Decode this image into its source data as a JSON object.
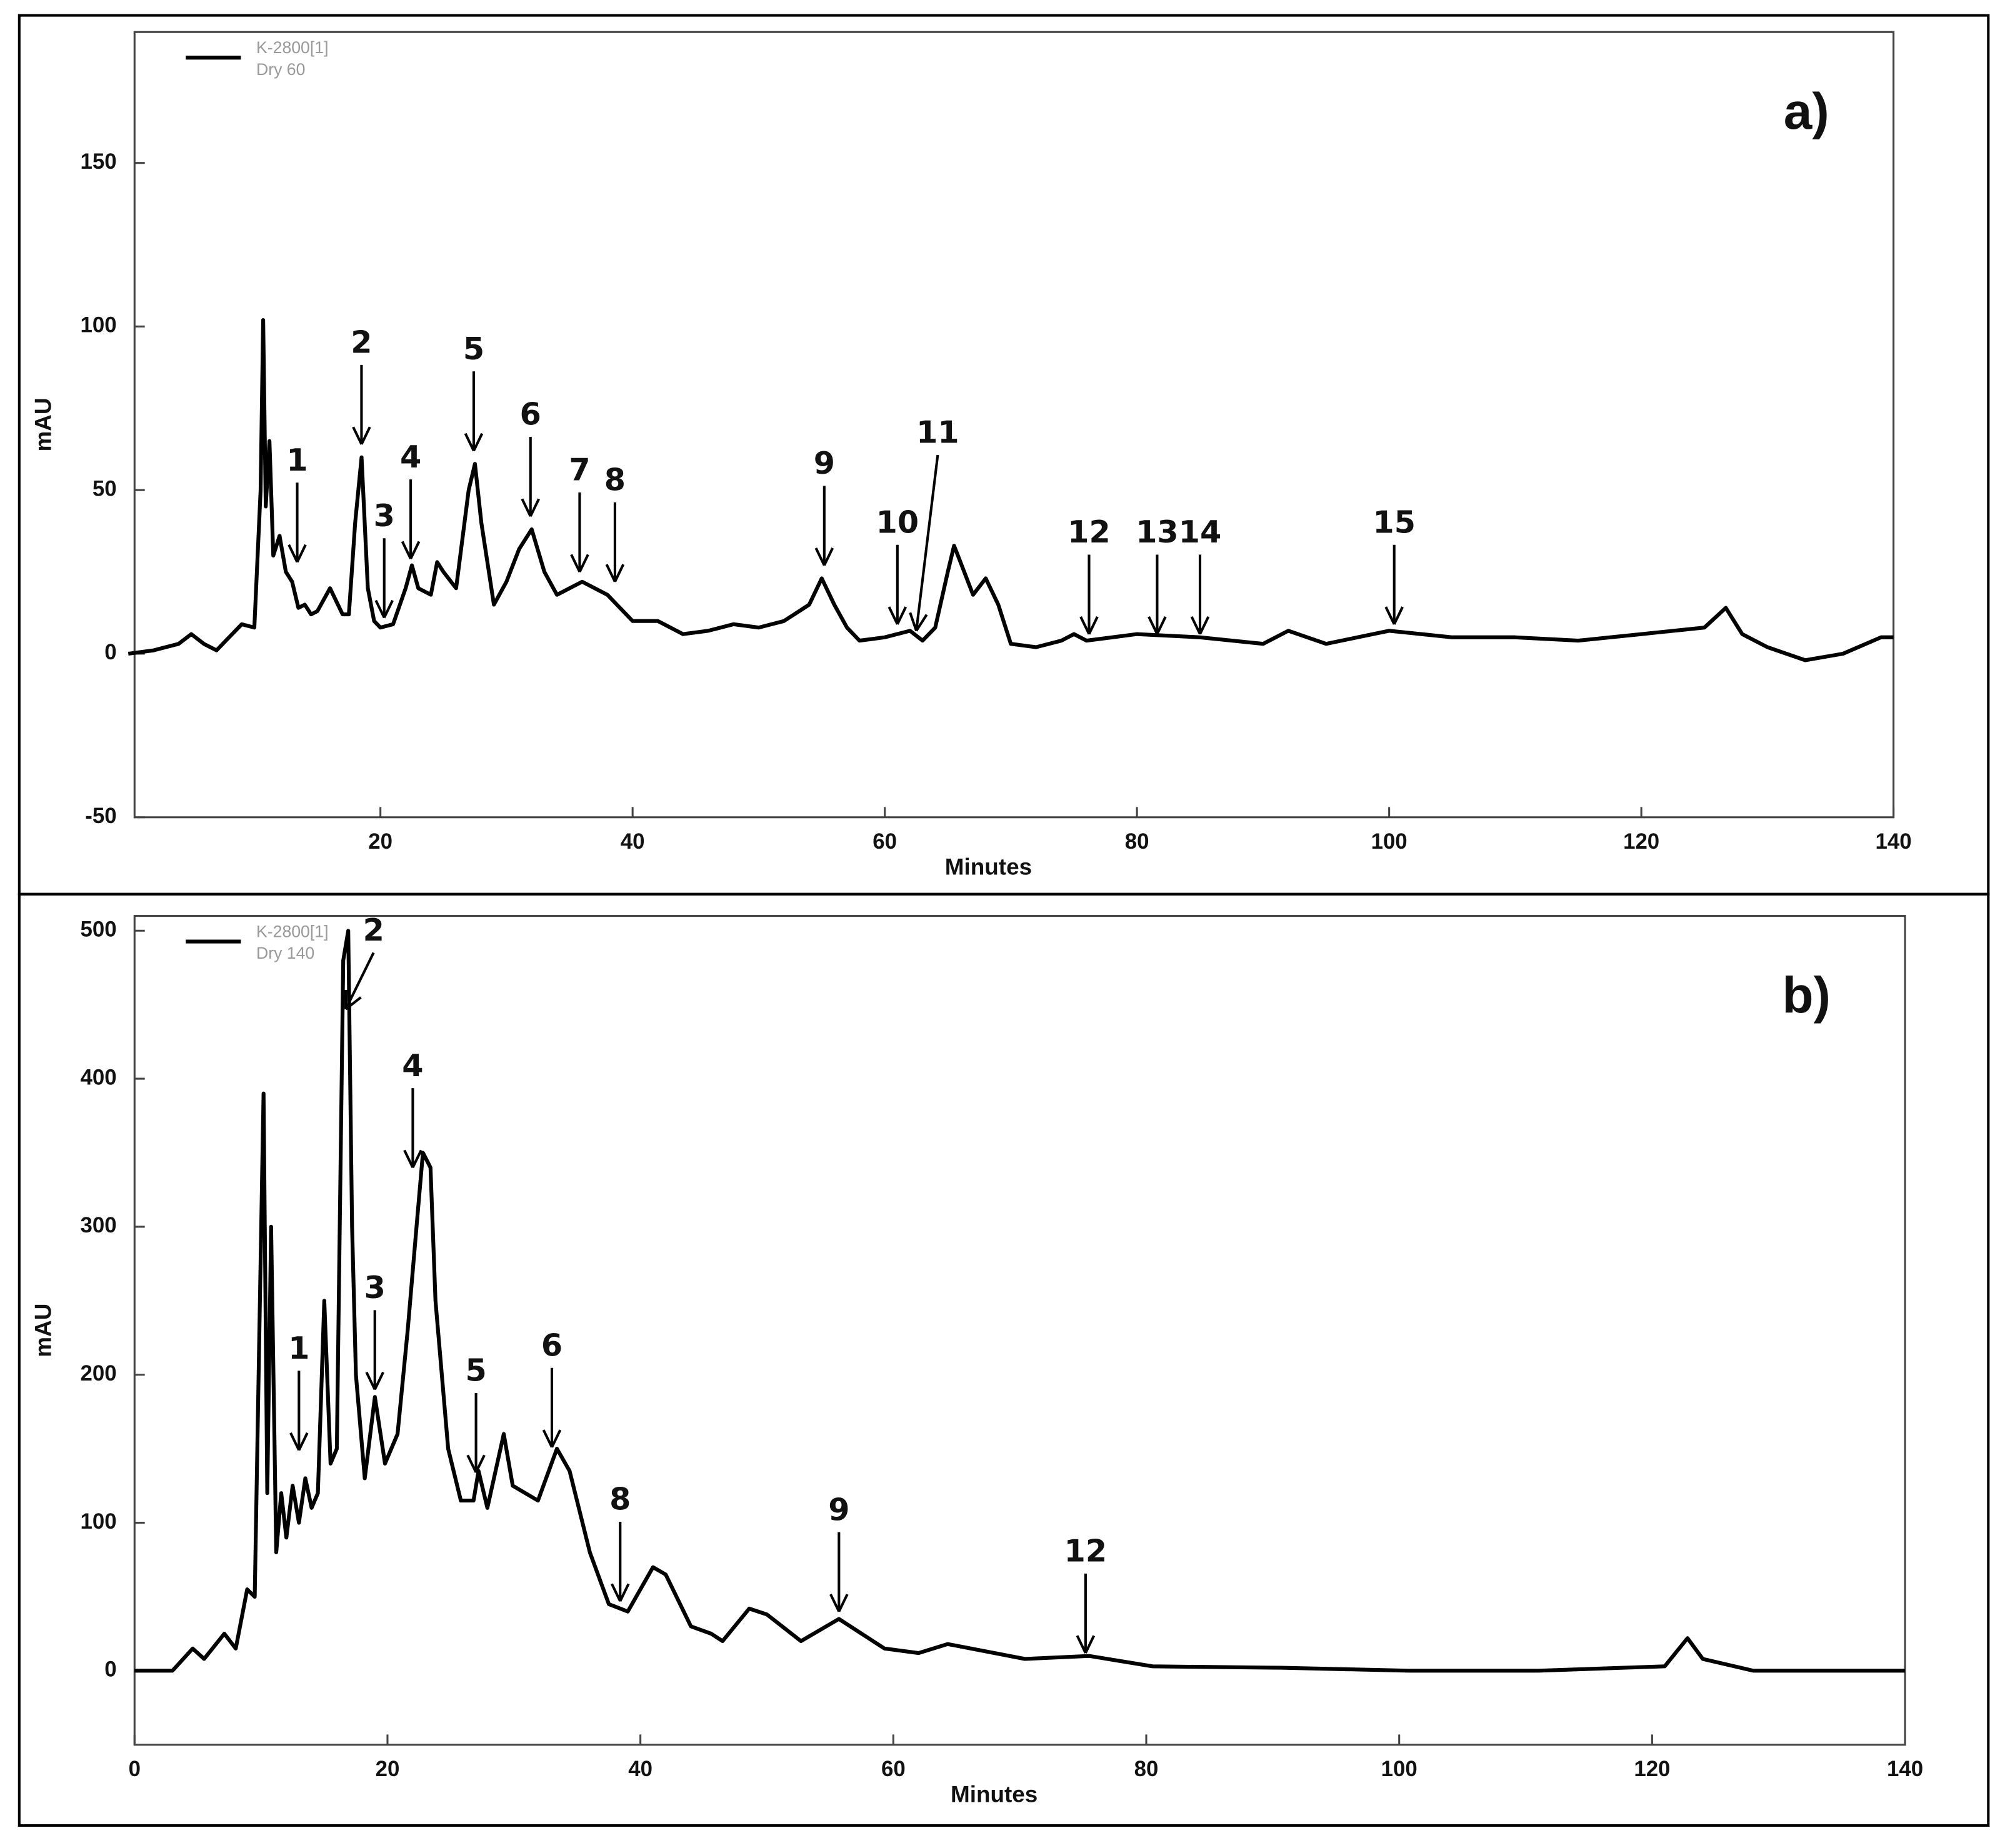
{
  "chart_data": [
    {
      "type": "line",
      "panel_label": "a)",
      "y_label": "mAU",
      "x_label": "Minutes",
      "series": [
        {
          "name": "K-2800[1]",
          "sample": "Dry 60",
          "color": "#000000",
          "values": [
            0,
            1,
            3,
            6,
            3,
            1,
            5,
            9,
            8,
            50,
            102,
            45,
            65,
            30,
            36,
            25,
            22,
            14,
            15,
            12,
            13,
            20,
            12,
            12,
            40,
            60,
            20,
            10,
            8,
            9,
            20,
            27,
            20,
            18,
            28,
            25,
            20,
            50,
            58,
            40,
            15,
            22,
            32,
            38,
            25,
            18,
            20,
            22,
            20,
            18,
            10,
            10,
            6,
            7,
            9,
            8,
            10,
            15,
            23,
            15,
            8,
            4,
            5,
            7,
            4,
            8,
            25,
            33,
            28,
            18,
            23,
            15,
            3,
            2,
            4,
            6,
            4,
            6,
            5,
            3,
            7,
            3,
            7,
            5,
            5,
            4,
            6,
            8,
            14,
            6,
            2,
            -2,
            0,
            5,
            5
          ]
        }
      ],
      "x": [
        0,
        2,
        4,
        5,
        6,
        7,
        8,
        9,
        10,
        10.5,
        10.7,
        10.9,
        11.2,
        11.5,
        12,
        12.5,
        13,
        13.5,
        14,
        14.5,
        15,
        16,
        17,
        17.5,
        18,
        18.5,
        19,
        19.5,
        20,
        21,
        22,
        22.5,
        23,
        24,
        24.5,
        25,
        26,
        27,
        27.5,
        28,
        29,
        30,
        31,
        32,
        33,
        34,
        35,
        36,
        37,
        38,
        40,
        42,
        44,
        46,
        48,
        50,
        52,
        54,
        55,
        56,
        57,
        58,
        60,
        62,
        63,
        64,
        65,
        65.5,
        66,
        67,
        68,
        69,
        70,
        72,
        74,
        75,
        76,
        80,
        85,
        90,
        92,
        95,
        100,
        105,
        110,
        115,
        120,
        125,
        126.7,
        128,
        130,
        133,
        136,
        139,
        140
      ],
      "xlim": [
        0.5,
        140
      ],
      "xticks": [
        20,
        40,
        60,
        80,
        100,
        120,
        140
      ],
      "ylim": [
        -50,
        190
      ],
      "yticks": [
        -50,
        0,
        50,
        100,
        150
      ],
      "annotations": [
        {
          "text": "1",
          "x": 13.4,
          "y": 28
        },
        {
          "text": "2",
          "x": 18.5,
          "y": 64
        },
        {
          "text": "3",
          "x": 20.3,
          "y": 11
        },
        {
          "text": "4",
          "x": 22.4,
          "y": 29
        },
        {
          "text": "5",
          "x": 27.4,
          "y": 62
        },
        {
          "text": "6",
          "x": 31.9,
          "y": 42
        },
        {
          "text": "7",
          "x": 35.8,
          "y": 25
        },
        {
          "text": "8",
          "x": 38.6,
          "y": 22
        },
        {
          "text": "9",
          "x": 55.2,
          "y": 27
        },
        {
          "text": "10",
          "x": 61,
          "y": 9
        },
        {
          "text": "11",
          "x": 62.5,
          "y": 7,
          "label_x": 64.2,
          "label_y": 67
        },
        {
          "text": "12",
          "x": 76.2,
          "y": 6
        },
        {
          "text": "13",
          "x": 81.6,
          "y": 6
        },
        {
          "text": "14",
          "x": 85,
          "y": 6
        },
        {
          "text": "15",
          "x": 100.4,
          "y": 9
        }
      ]
    },
    {
      "type": "line",
      "panel_label": "b)",
      "y_label": "mAU",
      "x_label": "Minutes",
      "series": [
        {
          "name": "K-2800[1]",
          "sample": "Dry 140",
          "color": "#000000",
          "values": [
            0,
            0,
            15,
            8,
            25,
            15,
            55,
            50,
            390,
            120,
            300,
            80,
            120,
            90,
            125,
            100,
            130,
            110,
            120,
            250,
            140,
            150,
            480,
            500,
            300,
            200,
            130,
            185,
            140,
            160,
            230,
            300,
            350,
            340,
            250,
            150,
            115,
            115,
            135,
            110,
            160,
            125,
            115,
            150,
            135,
            80,
            45,
            40,
            70,
            65,
            30,
            25,
            20,
            42,
            38,
            20,
            35,
            15,
            12,
            18,
            8,
            10,
            3,
            2,
            0,
            0,
            3,
            22,
            8,
            0,
            0
          ]
        }
      ],
      "x": [
        0,
        3,
        4.6,
        5.5,
        7.1,
        8,
        8.9,
        9.5,
        10.2,
        10.5,
        10.8,
        11.2,
        11.6,
        12,
        12.5,
        13,
        13.5,
        14,
        14.5,
        15,
        15.5,
        16,
        16.5,
        16.9,
        17.2,
        17.5,
        18.2,
        19,
        19.8,
        20.8,
        21.6,
        22.3,
        22.8,
        23.4,
        23.8,
        24.8,
        25.8,
        26.8,
        27.2,
        27.9,
        29.2,
        29.9,
        31.9,
        33.4,
        34.4,
        36,
        37.5,
        39,
        41,
        42,
        44,
        45.6,
        46.5,
        48.6,
        50,
        52.7,
        55.7,
        59.3,
        62,
        64.3,
        70.4,
        75.5,
        80.5,
        90.7,
        100.8,
        111,
        121,
        122.8,
        124,
        128,
        140
      ],
      "xlim": [
        0,
        140
      ],
      "xticks": [
        0,
        20,
        40,
        60,
        80,
        100,
        120,
        140
      ],
      "ylim": [
        -50,
        510
      ],
      "yticks": [
        0,
        100,
        200,
        300,
        400,
        500
      ],
      "annotations": [
        {
          "text": "1",
          "x": 13,
          "y": 149
        },
        {
          "text": "2",
          "x": 16.7,
          "y": 447,
          "label_x": 18.9,
          "label_y": 499
        },
        {
          "text": "3",
          "x": 19,
          "y": 190
        },
        {
          "text": "4",
          "x": 22,
          "y": 340
        },
        {
          "text": "5",
          "x": 27,
          "y": 134
        },
        {
          "text": "6",
          "x": 33,
          "y": 151
        },
        {
          "text": "8",
          "x": 38.4,
          "y": 47
        },
        {
          "text": "9",
          "x": 55.7,
          "y": 40
        },
        {
          "text": "12",
          "x": 75.2,
          "y": 12
        }
      ]
    }
  ]
}
